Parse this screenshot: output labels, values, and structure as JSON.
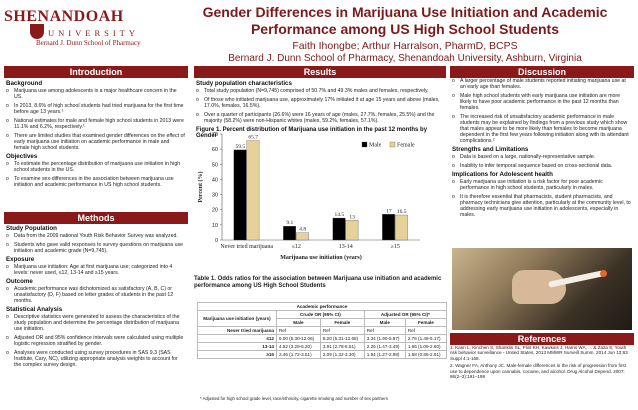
{
  "logo": {
    "name": "SHENANDOAH",
    "university": "UNIVERSITY",
    "school": "Bernard J. Dunn School of Pharmacy"
  },
  "header": {
    "title_line1": "Gender Differences in Marijuana Use Initiation and Academic",
    "title_line2": "Performance among US High School Students",
    "authors": "Faith Ihongbe; Arthur Harralson, PharmD, BCPS",
    "affiliation": "Bernard J. Dunn School of Pharmacy, Shenandoah University, Ashburn, Virginia"
  },
  "sections": {
    "introduction": "Introduction",
    "methods": "Methods",
    "results": "Results",
    "discussion": "Discussion",
    "references": "References"
  },
  "intro": {
    "background_heading": "Background",
    "background": [
      "Marijuana use among adolescents is a major healthcare concern in the US.",
      "In 2013, 8.6% of high school students had tried marijuana for the first time before age 13 years.¹",
      "National estimates for male and female high school students in 2013 were 11.1% and 6.2%, respectively.¹",
      "There are limited studies that examined gender differences on the effect of early marijuana use initiation on academic performance in male and female high school students."
    ],
    "objectives_heading": "Objectives",
    "objectives": [
      "To estimate the percentage distribution of marijuana use initiation in high school students in the US.",
      "To examine sex-differences in the association between marijuana use initiation and academic performance in US high school students."
    ]
  },
  "methods": {
    "population_heading": "Study Population",
    "population": [
      "Data from the 2009 national Youth Risk Behavior Survey was analyzed.",
      "Students who gave valid responses to survey questions on marijuana use initiation and academic grade (N=9,745)."
    ],
    "exposure_heading": "Exposure",
    "exposure": [
      "Marijuana use initiation: Age at first marijuana use; categorized into 4 levels: never used, ≤12, 13-14 and ≥15 years."
    ],
    "outcome_heading": "Outcome",
    "outcome": [
      "Academic performance was dichotomized as satisfactory (A, B, C) or unsatisfactory (D, F) based on letter grades of students in the past 12 months."
    ],
    "stats_heading": "Statistical Analysis",
    "stats": [
      "Descriptive statistics were generated to assess the characteristics of the study population and determine the percentage distribution of marijuana use initiation.",
      "Adjusted OR and 95% confidence intervals were calculated using multiple logistic regression stratified by gender.",
      "Analyses were conducted using survey procedures in SAS 9.3 (SAS Institute, Cary, NC), utilizing appropriate analysis weights to account for the complex survey design."
    ]
  },
  "results": {
    "pop_heading": "Study population characteristics",
    "pop": [
      "Total study population (N=9,745) comprised of 50.7% and 49.3% males and females, respectively.",
      "Of those who initiated marijuana use, approximately 17% initiated it at age 15 years and above (males, 17.0%, females, 16.5%).",
      "Over a quarter of participants (26.6%) were 16 years of age (males, 27.7%, females, 25.5%) and the majority (58.2%) were non-Hispanic whites (males, 59.2%, females, 57.1%)."
    ],
    "figure_caption": "Figure 1. Percent distribution of Marijuana use initiation in the past 12 months by Gender",
    "table_caption": "Table 1. Odds ratios for the association between Marijuana use initiation and academic performance among US High School Students",
    "table": {
      "group_header": "Academic performance",
      "col_initiation": "Marijuana use initiation (years)",
      "col_crude": "Crude OR (95% CI)",
      "col_adjusted": "Adjusted OR (95% CI)*",
      "sub_male": "Male",
      "sub_female": "Female",
      "rows": [
        {
          "label": "Never tried marijuana",
          "cm": "Ref",
          "cf": "Ref",
          "am": "Ref",
          "af": "Ref"
        },
        {
          "label": "≤12",
          "cm": "6.00 (5.30-12.06)",
          "cf": "8.20 (5.31-12.68)",
          "am": "3.34 (1.90-5.87)",
          "af": "2.76 (1.48-5.17)"
        },
        {
          "label": "13-14",
          "cm": "4.52 (3.29-6.20)",
          "cf": "3.91 (2.78-5.51)",
          "am": "2.26 (1.47-3.49)",
          "af": "1.66 (1.09-2.60)"
        },
        {
          "label": "≥15",
          "cm": "2.46 (1.72-3.51)",
          "cf": "2.09 (1.32-3.30)",
          "am": "1.94 (1.27-2.98)",
          "af": "1.58 (0.85-2.91)"
        }
      ],
      "note": "* Adjusted for high school grade level, race/ethnicity, cigarette smoking and number of sex partners"
    }
  },
  "discussion": {
    "items": [
      "A larger percentage of male students reported initiating marijuana use at an early age than females.",
      "Male high school students with early marijuana use initiation are more likely to have poor academic performance in the past 12 months than females.",
      "The increased risk of unsatisfactory academic performance in male students may be explained by findings from a previous study which show that males appear to be more likely than females to become marijuana dependent in the first few years following initiation along with its attendant complications.²"
    ],
    "strengths_heading": "Strengths and Limitations",
    "strengths": [
      "Data is based on a large, nationally-representative sample.",
      "Inability to infer temporal sequence based on cross-sectional data."
    ],
    "implications_heading": "Implications for Adolescent health",
    "implications": [
      "Early marijuana use initiation is a risk factor for poor academic performance in high school students, particularly in males.",
      "It is therefore essential that pharmacists, student pharmacists, and pharmacy technicians give attention, particularly at the community level, to addressing early marijuana use initiation in adolescents, especially in males."
    ]
  },
  "references": [
    "1. Kann L, Kinchen S, Shanklin SL, Flint KH, Kawkins J, Harris WA, ... & Zaza S; Youth risk behavior surveillance - United States, 2013 MMWR Surveill Summ. 2014 Jun 13;63 Suppl 4:1-168.",
    "2. Wagner FA, Anthony JC. Male-female differences in the risk of progression from first use to dependence upon cannabis, cocaine, and alcohol. Drug Alcohol Depend. 2007; 86(2–3):191–198"
  ],
  "chart_data": {
    "type": "bar",
    "title": "",
    "xlabel": "Marijuana use initiation (years)",
    "ylabel": "Percent (%)",
    "ylim": [
      0,
      70
    ],
    "yticks": [
      0,
      10,
      20,
      30,
      40,
      50,
      60,
      70
    ],
    "categories": [
      "Never tried marijuana",
      "≤12",
      "13-14",
      "≥15"
    ],
    "series": [
      {
        "name": "Male",
        "color": "#000000",
        "values": [
          59.5,
          9.1,
          14.5,
          17.0
        ]
      },
      {
        "name": "Female",
        "color": "#e6d19a",
        "values": [
          65.7,
          4.8,
          13.0,
          16.5
        ]
      }
    ],
    "value_labels": [
      [
        "59.5",
        "9.1",
        "14.5",
        "17"
      ],
      [
        "65.7",
        "4.8",
        "13",
        "16.5"
      ]
    ],
    "legend": "top-right",
    "grid": false
  }
}
